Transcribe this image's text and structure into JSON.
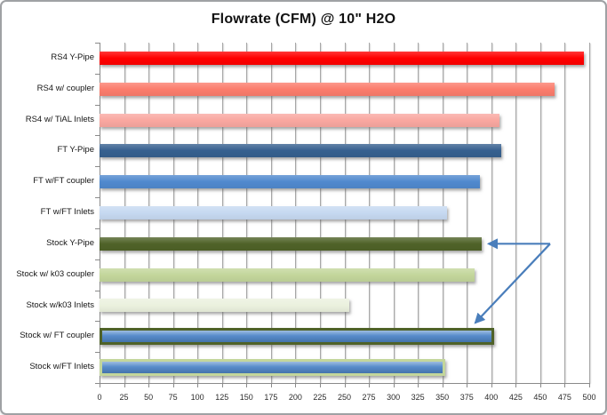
{
  "chart_data": {
    "type": "bar",
    "orientation": "horizontal",
    "title": "Flowrate (CFM) @ 10\" H2O",
    "categories": [
      "RS4 Y-Pipe",
      "RS4 w/ coupler",
      "RS4 w/ TiAL Inlets",
      "FT Y-Pipe",
      "FT w/FT coupler",
      "FT w/FT Inlets",
      "Stock Y-Pipe",
      "Stock w/ k03 coupler",
      "Stock w/k03 Inlets",
      "Stock w/ FT coupler",
      "Stock w/FT Inlets"
    ],
    "values": [
      495,
      465,
      408,
      410,
      388,
      355,
      390,
      383,
      255,
      400,
      350
    ],
    "bar_colors": [
      "#FF0000",
      "#FB7C6C",
      "#F9A7A0",
      "#36608F",
      "#5089CE",
      "#C6D9F1",
      "#4F6228",
      "#C3D69B",
      "#EBF1DE",
      "#4F86C8",
      "#4F86C8"
    ],
    "bar_border_colors": [
      null,
      null,
      null,
      null,
      null,
      null,
      null,
      null,
      null,
      "#4F6228",
      "#C3D69B"
    ],
    "xlabel": "",
    "ylabel": "",
    "xlim": [
      0,
      500
    ],
    "x_tick_step": 25,
    "x_tick_labels": [
      "0",
      "25",
      "50",
      "75",
      "100",
      "125",
      "150",
      "175",
      "200",
      "225",
      "250",
      "275",
      "300",
      "325",
      "350",
      "375",
      "400",
      "425",
      "450",
      "475",
      "500"
    ],
    "grid": true,
    "gridline_color": "#A7A7A7",
    "axis_color": "#8A8A8A",
    "legend": "none",
    "annotation": {
      "type": "double-headed-callout-arrow",
      "color": "#4A7EBB",
      "targets": [
        "Stock Y-Pipe",
        "Stock w/ FT coupler"
      ],
      "description": "Blue arrow with two heads pointing at the ends of the Stock Y-Pipe bar and the Stock w/ FT coupler bar"
    }
  }
}
